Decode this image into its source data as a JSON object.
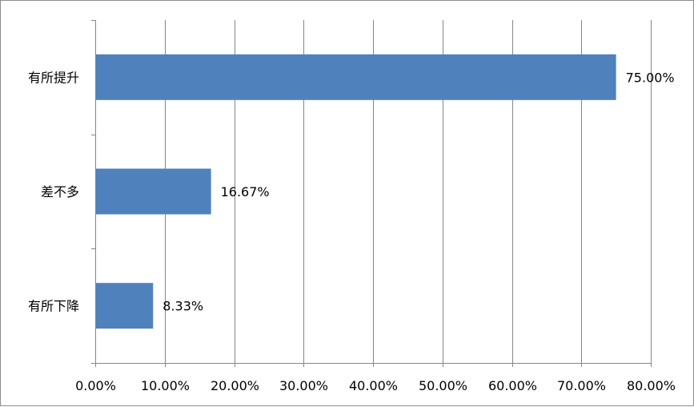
{
  "chart_data": {
    "type": "bar",
    "orientation": "horizontal",
    "categories": [
      "有所提升",
      "差不多",
      "有所下降"
    ],
    "values": [
      75.0,
      16.67,
      8.33
    ],
    "data_labels": [
      "75.00%",
      "16.67%",
      "8.33%"
    ],
    "xlim": [
      0,
      80
    ],
    "x_ticks": [
      0,
      10,
      20,
      30,
      40,
      50,
      60,
      70,
      80
    ],
    "x_tick_labels": [
      "0.00%",
      "10.00%",
      "20.00%",
      "30.00%",
      "40.00%",
      "50.00%",
      "60.00%",
      "70.00%",
      "80.00%"
    ],
    "grid": "vertical",
    "legend": "none",
    "bar_color": "#4f81bd",
    "grid_color": "#868686"
  }
}
